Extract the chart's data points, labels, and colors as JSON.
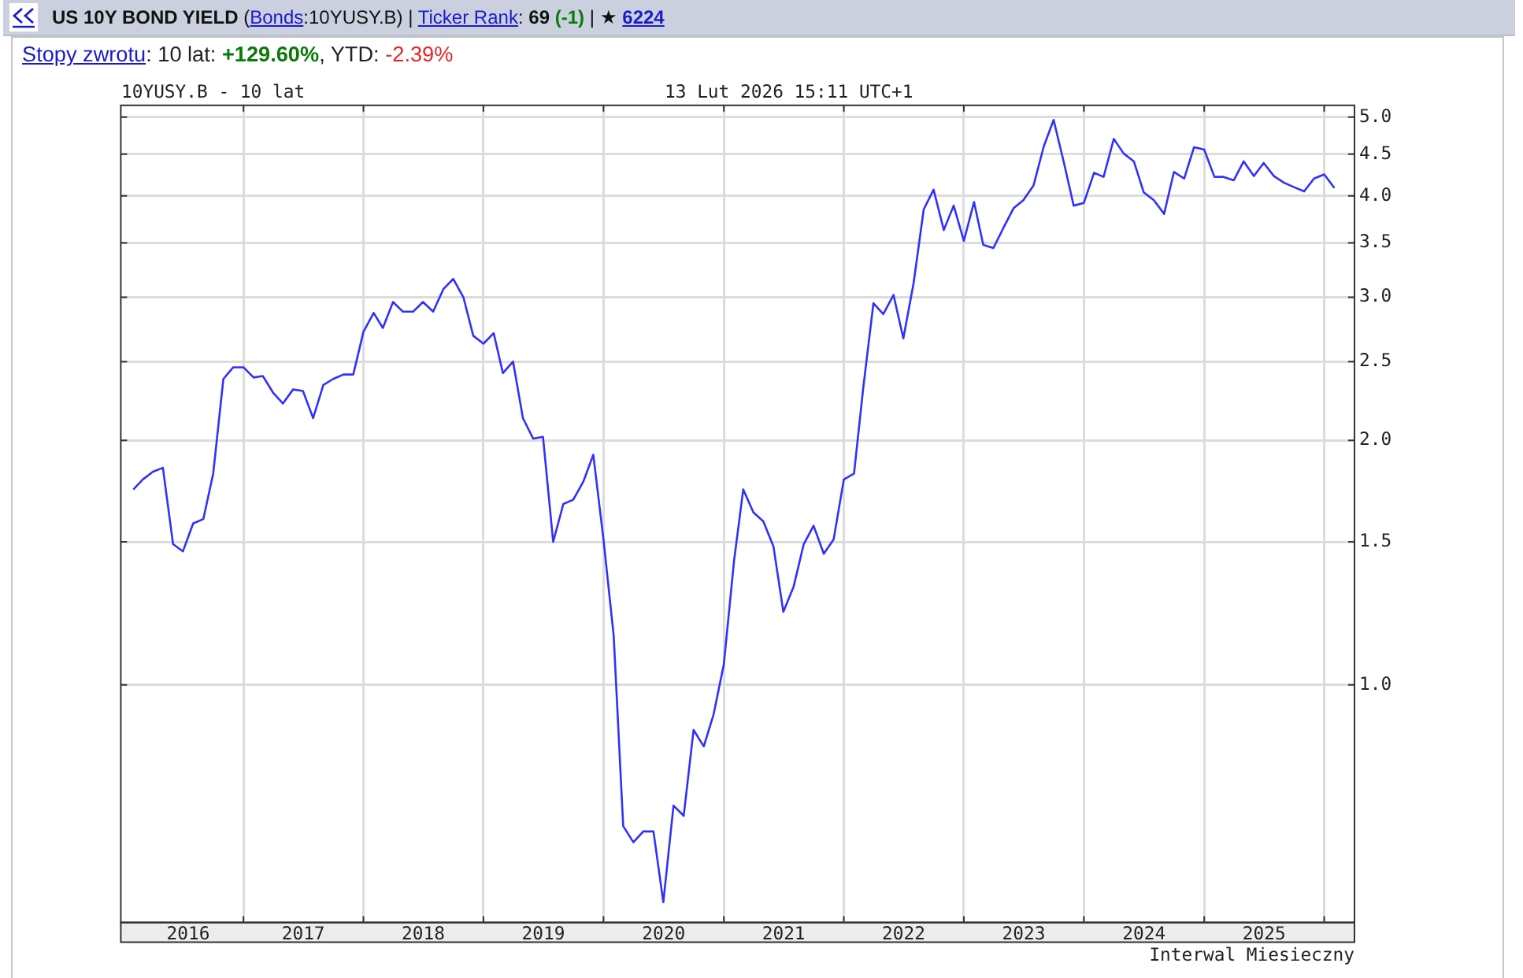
{
  "chart_data": {
    "type": "line",
    "title": "US 10Y BOND YIELD",
    "subtitle": "(Bonds:10YUSY.B) | Ticker Rank: 69 (-1) | ★ 6224",
    "annotations": [
      "Stopy zwrotu: 10 lat: +129.60%, YTD: -2.39%",
      "10YUSY.B - 10 lat",
      "13 Lut 2026 15:11 UTC+1",
      "Interwal Miesieczny"
    ],
    "x": [
      "2016-02",
      "2016-03",
      "2016-04",
      "2016-05",
      "2016-06",
      "2016-07",
      "2016-08",
      "2016-09",
      "2016-10",
      "2016-11",
      "2016-12",
      "2017-01",
      "2017-02",
      "2017-03",
      "2017-04",
      "2017-05",
      "2017-06",
      "2017-07",
      "2017-08",
      "2017-09",
      "2017-10",
      "2017-11",
      "2017-12",
      "2018-01",
      "2018-02",
      "2018-03",
      "2018-04",
      "2018-05",
      "2018-06",
      "2018-07",
      "2018-08",
      "2018-09",
      "2018-10",
      "2018-11",
      "2018-12",
      "2019-01",
      "2019-02",
      "2019-03",
      "2019-04",
      "2019-05",
      "2019-06",
      "2019-07",
      "2019-08",
      "2019-09",
      "2019-10",
      "2019-11",
      "2019-12",
      "2020-01",
      "2020-02",
      "2020-03",
      "2020-04",
      "2020-05",
      "2020-06",
      "2020-07",
      "2020-08",
      "2020-09",
      "2020-10",
      "2020-11",
      "2020-12",
      "2021-01",
      "2021-02",
      "2021-03",
      "2021-04",
      "2021-05",
      "2021-06",
      "2021-07",
      "2021-08",
      "2021-09",
      "2021-10",
      "2021-11",
      "2021-12",
      "2022-01",
      "2022-02",
      "2022-03",
      "2022-04",
      "2022-05",
      "2022-06",
      "2022-07",
      "2022-08",
      "2022-09",
      "2022-10",
      "2022-11",
      "2022-12",
      "2023-01",
      "2023-02",
      "2023-03",
      "2023-04",
      "2023-05",
      "2023-06",
      "2023-07",
      "2023-08",
      "2023-09",
      "2023-10",
      "2023-11",
      "2023-12",
      "2024-01",
      "2024-02",
      "2024-03",
      "2024-04",
      "2024-05",
      "2024-06",
      "2024-07",
      "2024-08",
      "2024-09",
      "2024-10",
      "2024-11",
      "2024-12",
      "2025-01",
      "2025-02",
      "2025-03",
      "2025-04",
      "2025-05",
      "2025-06",
      "2025-07",
      "2025-08",
      "2025-09",
      "2025-10",
      "2025-11",
      "2025-12",
      "2026-01",
      "2026-02"
    ],
    "values": [
      1.74,
      1.79,
      1.83,
      1.85,
      1.49,
      1.46,
      1.58,
      1.6,
      1.82,
      2.38,
      2.46,
      2.46,
      2.39,
      2.4,
      2.29,
      2.22,
      2.31,
      2.3,
      2.13,
      2.34,
      2.38,
      2.41,
      2.41,
      2.72,
      2.87,
      2.75,
      2.96,
      2.88,
      2.88,
      2.96,
      2.88,
      3.07,
      3.16,
      3.0,
      2.69,
      2.63,
      2.71,
      2.42,
      2.5,
      2.13,
      2.01,
      2.02,
      1.5,
      1.67,
      1.69,
      1.78,
      1.92,
      1.51,
      1.15,
      0.67,
      0.64,
      0.66,
      0.66,
      0.54,
      0.71,
      0.69,
      0.88,
      0.84,
      0.92,
      1.06,
      1.42,
      1.74,
      1.63,
      1.59,
      1.48,
      1.23,
      1.32,
      1.49,
      1.57,
      1.45,
      1.51,
      1.79,
      1.82,
      2.32,
      2.95,
      2.86,
      3.02,
      2.67,
      3.12,
      3.85,
      4.07,
      3.63,
      3.89,
      3.52,
      3.93,
      3.48,
      3.45,
      3.65,
      3.86,
      3.95,
      4.12,
      4.6,
      4.96,
      4.4,
      3.89,
      3.92,
      4.27,
      4.22,
      4.7,
      4.51,
      4.41,
      4.04,
      3.95,
      3.8,
      4.28,
      4.2,
      4.59,
      4.56,
      4.22,
      4.22,
      4.18,
      4.41,
      4.23,
      4.39,
      4.23,
      4.15,
      4.1,
      4.05,
      4.2,
      4.25,
      4.09
    ],
    "color": "#3030ff",
    "log": "y",
    "ylim": [
      0.51,
      5.17
    ],
    "yticks": [
      {
        "value": 1,
        "label": "1.0"
      },
      1.5,
      {
        "value": 2,
        "label": "2.0"
      },
      2.5,
      {
        "value": 3,
        "label": "3.0"
      },
      3.5,
      {
        "value": 4,
        "label": "4.0"
      },
      4.5,
      {
        "value": 5,
        "label": "5.0"
      }
    ],
    "xlim": [
      "2015-12-25",
      "2026-04-03"
    ],
    "xticks": [
      {
        "value": "2016-07-17",
        "label": "2016"
      },
      {
        "value": "2017-01-01",
        "label": null
      },
      {
        "value": "2017-07-02",
        "label": "2017"
      },
      {
        "value": "2018-01-01",
        "label": null
      },
      {
        "value": "2018-07-02",
        "label": "2018"
      },
      {
        "value": "2019-01-01",
        "label": null
      },
      {
        "value": "2019-07-02",
        "label": "2019"
      },
      {
        "value": "2020-01-01",
        "label": null
      },
      {
        "value": "2020-07-02",
        "label": "2020"
      },
      {
        "value": "2021-01-01",
        "label": null
      },
      {
        "value": "2021-07-02",
        "label": "2021"
      },
      {
        "value": "2022-01-01",
        "label": null
      },
      {
        "value": "2022-07-02",
        "label": "2022"
      },
      {
        "value": "2023-01-01",
        "label": null
      },
      {
        "value": "2023-07-02",
        "label": "2023"
      },
      {
        "value": "2024-01-01",
        "label": null
      },
      {
        "value": "2024-07-02",
        "label": "2024"
      },
      {
        "value": "2025-01-01",
        "label": null
      },
      {
        "value": "2025-07-02",
        "label": "2025"
      },
      {
        "value": "2026-01-01",
        "label": null
      }
    ],
    "grid": true
  }
}
